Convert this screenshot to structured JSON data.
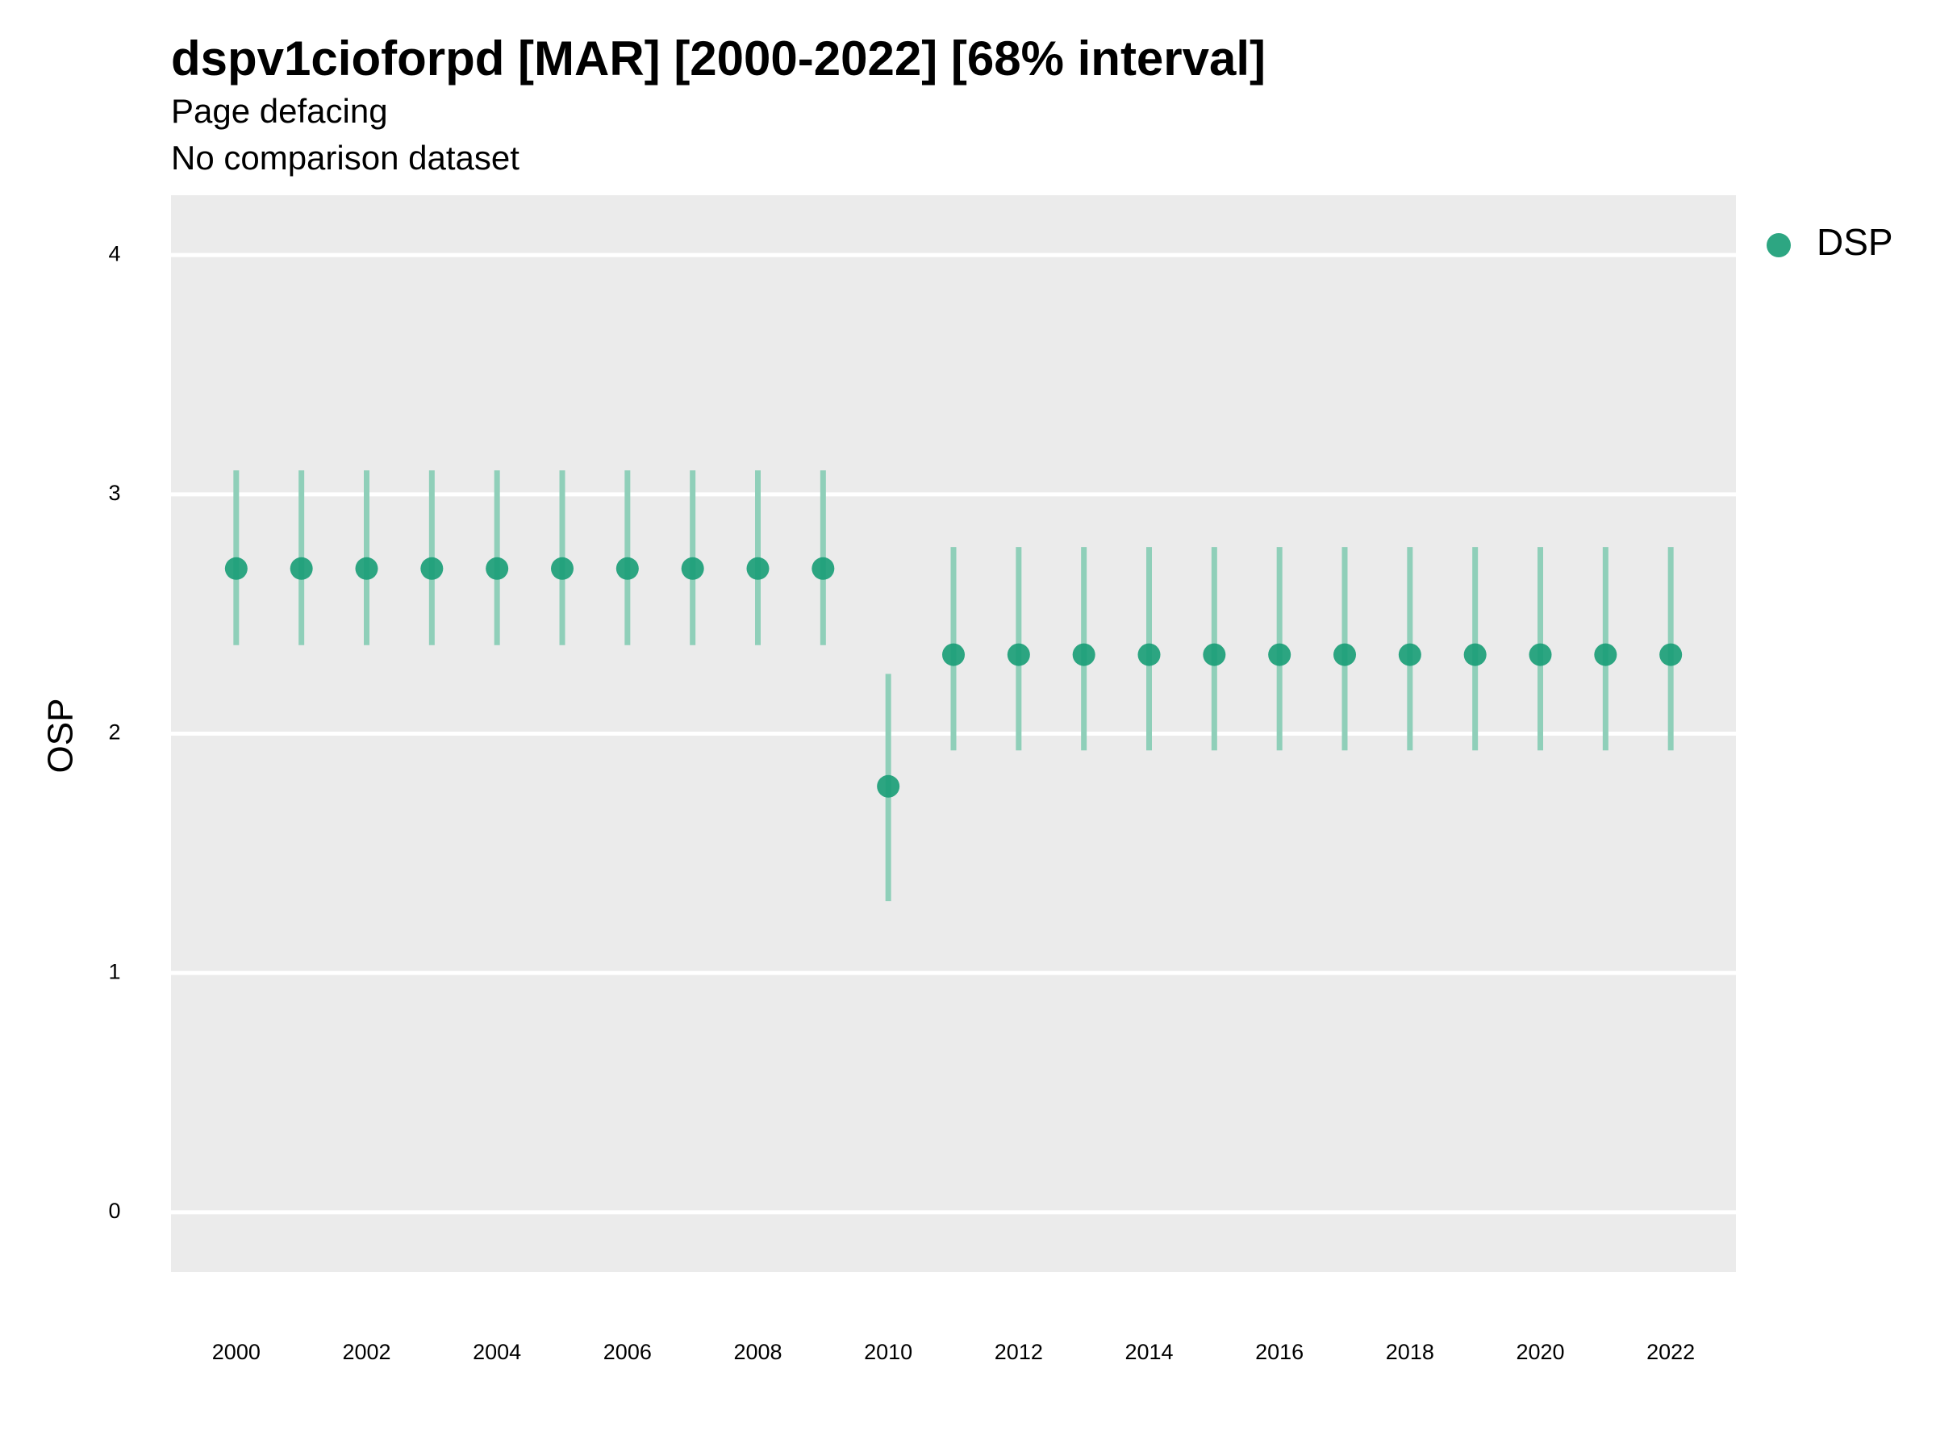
{
  "chart_data": {
    "type": "scatter",
    "title": "dspv1cioforpd [MAR] [2000-2022] [68% interval]",
    "subtitle": "Page defacing",
    "subtitle2": "No comparison dataset",
    "xlabel": "",
    "ylabel": "OSP",
    "xlim": [
      1999,
      2023
    ],
    "ylim": [
      -0.25,
      4.25
    ],
    "grid": true,
    "legend_position": "right-top",
    "x_ticks": [
      "2000",
      "2002",
      "2004",
      "2006",
      "2008",
      "2010",
      "2012",
      "2014",
      "2016",
      "2018",
      "2020",
      "2022"
    ],
    "y_ticks": [
      "0",
      "1",
      "2",
      "3",
      "4"
    ],
    "series": [
      {
        "name": "DSP",
        "color": "#1b9e77",
        "x": [
          2000,
          2001,
          2002,
          2003,
          2004,
          2005,
          2006,
          2007,
          2008,
          2009,
          2010,
          2011,
          2012,
          2013,
          2014,
          2015,
          2016,
          2017,
          2018,
          2019,
          2020,
          2021,
          2022
        ],
        "y": [
          2.69,
          2.69,
          2.69,
          2.69,
          2.69,
          2.69,
          2.69,
          2.69,
          2.69,
          2.69,
          1.78,
          2.33,
          2.33,
          2.33,
          2.33,
          2.33,
          2.33,
          2.33,
          2.33,
          2.33,
          2.33,
          2.33,
          2.33
        ],
        "lower": [
          2.37,
          2.37,
          2.37,
          2.37,
          2.37,
          2.37,
          2.37,
          2.37,
          2.37,
          2.37,
          1.3,
          1.93,
          1.93,
          1.93,
          1.93,
          1.93,
          1.93,
          1.93,
          1.93,
          1.93,
          1.93,
          1.93,
          1.93
        ],
        "upper": [
          3.1,
          3.1,
          3.1,
          3.1,
          3.1,
          3.1,
          3.1,
          3.1,
          3.1,
          3.1,
          2.25,
          2.78,
          2.78,
          2.78,
          2.78,
          2.78,
          2.78,
          2.78,
          2.78,
          2.78,
          2.78,
          2.78,
          2.78
        ]
      }
    ]
  },
  "colors": {
    "panel": "#ebebeb",
    "grid": "#ffffff",
    "point": "#1b9e77",
    "interval": "#8fcfb9"
  }
}
